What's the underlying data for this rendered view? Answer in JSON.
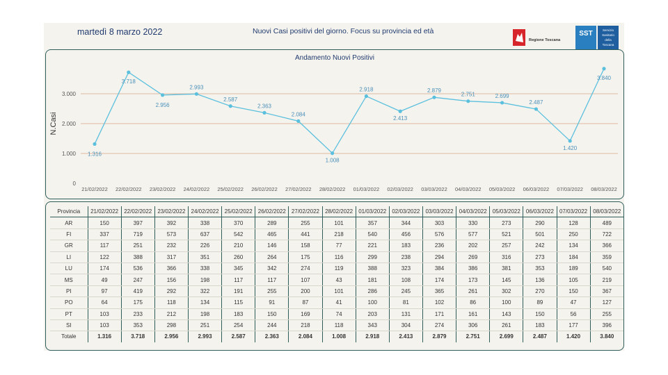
{
  "header": {
    "date": "martedì 8 marzo 2022",
    "title": "Nuovi Casi positivi del giorno. Focus su provincia ed età",
    "logo_rt_text": "Regione Toscana",
    "logo_sst_abbr": "SST",
    "logo_sst_text": [
      "Servizio",
      "Sanitario",
      "della",
      "Toscana"
    ]
  },
  "colors": {
    "line": "#5bc0de",
    "grid": "#e0b8a0",
    "border": "#2e5d5a",
    "label": "#4a90b8"
  },
  "chart_data": {
    "type": "line",
    "title": "Andamento Nuovi Positivi",
    "xlabel": "",
    "ylabel": "N.Casi",
    "ylim": [
      0,
      4000
    ],
    "yticks": [
      0,
      1000,
      2000,
      3000
    ],
    "ytick_labels": [
      "0",
      "1.000",
      "2.000",
      "3.000"
    ],
    "grid": true,
    "categories": [
      "21/02/2022",
      "22/02/2022",
      "23/02/2022",
      "24/02/2022",
      "25/02/2022",
      "26/02/2022",
      "27/02/2022",
      "28/02/2022",
      "01/03/2022",
      "02/03/2022",
      "03/03/2022",
      "04/03/2022",
      "05/03/2022",
      "06/03/2022",
      "07/03/2022",
      "08/03/2022"
    ],
    "values": [
      1316,
      3718,
      2956,
      2993,
      2587,
      2363,
      2084,
      1008,
      2918,
      2413,
      2879,
      2751,
      2699,
      2487,
      1420,
      3840
    ],
    "labels": [
      "1.316",
      "3.718",
      "2.956",
      "2.993",
      "2.587",
      "2.363",
      "2.084",
      "1.008",
      "2.918",
      "2.413",
      "2.879",
      "2.751",
      "2.699",
      "2.487",
      "1.420",
      "3.840"
    ]
  },
  "table": {
    "header": [
      "Provincia",
      "21/02/2022",
      "22/02/2022",
      "23/02/2022",
      "24/02/2022",
      "25/02/2022",
      "26/02/2022",
      "27/02/2022",
      "28/02/2022",
      "01/03/2022",
      "02/03/2022",
      "03/03/2022",
      "04/03/2022",
      "05/03/2022",
      "06/03/2022",
      "07/03/2022",
      "08/03/2022"
    ],
    "rows": [
      [
        "AR",
        "150",
        "397",
        "392",
        "338",
        "370",
        "289",
        "255",
        "101",
        "357",
        "344",
        "303",
        "330",
        "273",
        "290",
        "128",
        "489"
      ],
      [
        "FI",
        "337",
        "719",
        "573",
        "637",
        "542",
        "465",
        "441",
        "218",
        "540",
        "456",
        "576",
        "577",
        "521",
        "501",
        "250",
        "722"
      ],
      [
        "GR",
        "117",
        "251",
        "232",
        "226",
        "210",
        "146",
        "158",
        "77",
        "221",
        "183",
        "236",
        "202",
        "257",
        "242",
        "134",
        "366"
      ],
      [
        "LI",
        "122",
        "388",
        "317",
        "351",
        "260",
        "264",
        "175",
        "116",
        "299",
        "238",
        "294",
        "269",
        "316",
        "273",
        "184",
        "359"
      ],
      [
        "LU",
        "174",
        "536",
        "366",
        "338",
        "345",
        "342",
        "274",
        "119",
        "388",
        "323",
        "384",
        "386",
        "381",
        "353",
        "189",
        "540"
      ],
      [
        "MS",
        "49",
        "247",
        "156",
        "198",
        "117",
        "117",
        "107",
        "43",
        "181",
        "108",
        "174",
        "173",
        "145",
        "136",
        "105",
        "219"
      ],
      [
        "PI",
        "97",
        "419",
        "292",
        "322",
        "191",
        "255",
        "200",
        "101",
        "286",
        "245",
        "365",
        "261",
        "302",
        "270",
        "150",
        "367"
      ],
      [
        "PO",
        "64",
        "175",
        "118",
        "134",
        "115",
        "91",
        "87",
        "41",
        "100",
        "81",
        "102",
        "86",
        "100",
        "89",
        "47",
        "127"
      ],
      [
        "PT",
        "103",
        "233",
        "212",
        "198",
        "183",
        "150",
        "169",
        "74",
        "203",
        "131",
        "171",
        "161",
        "143",
        "150",
        "56",
        "255"
      ],
      [
        "SI",
        "103",
        "353",
        "298",
        "251",
        "254",
        "244",
        "218",
        "118",
        "343",
        "304",
        "274",
        "306",
        "261",
        "183",
        "177",
        "396"
      ]
    ],
    "total": [
      "Totale",
      "1.316",
      "3.718",
      "2.956",
      "2.993",
      "2.587",
      "2.363",
      "2.084",
      "1.008",
      "2.918",
      "2.413",
      "2.879",
      "2.751",
      "2.699",
      "2.487",
      "1.420",
      "3.840"
    ]
  }
}
